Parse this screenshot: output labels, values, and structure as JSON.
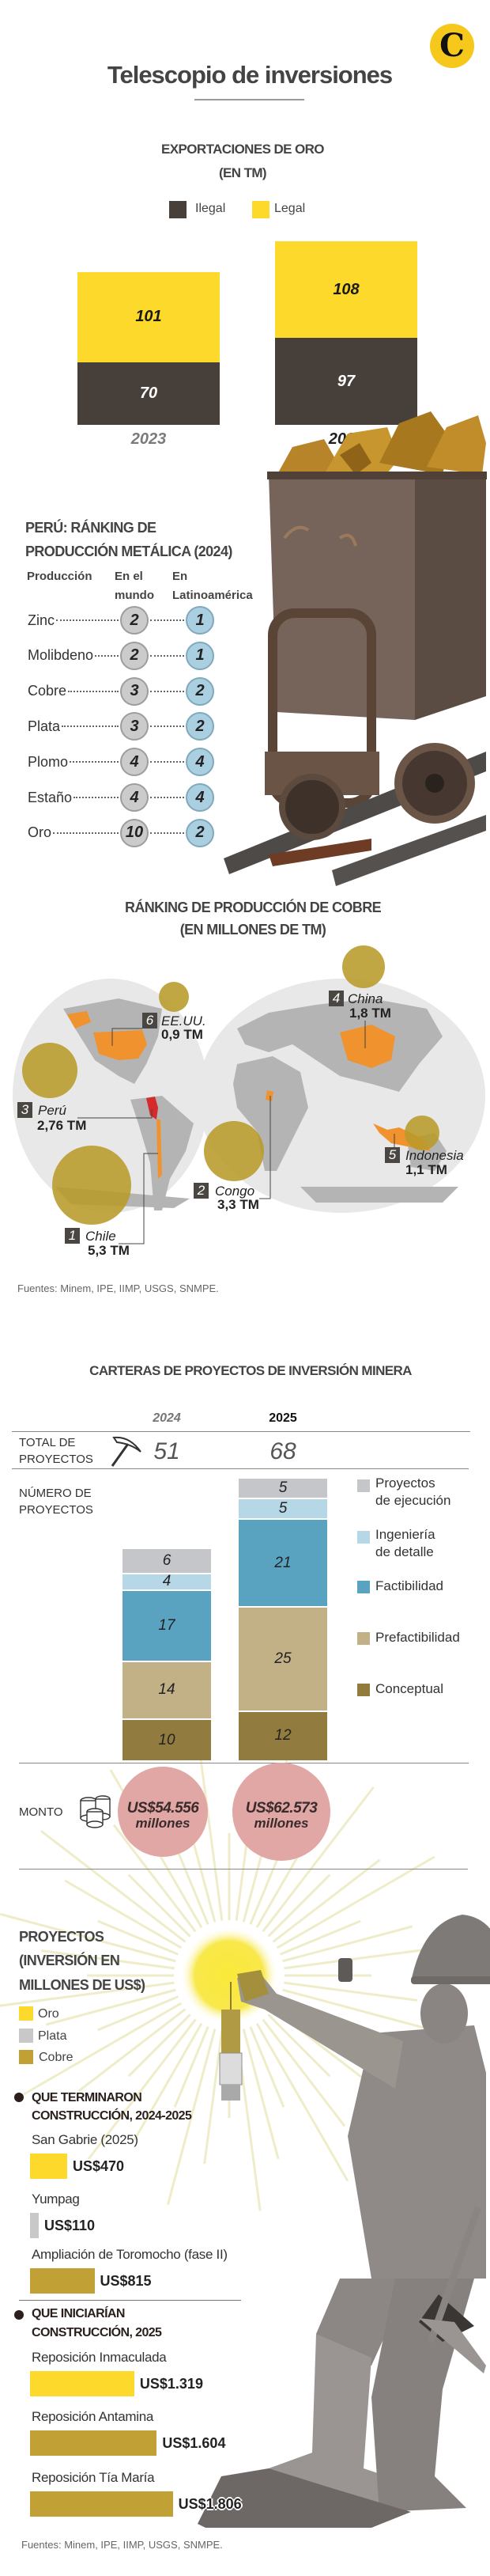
{
  "header": {
    "title": "Telescopio de inversiones",
    "logo_letter": "C"
  },
  "colors": {
    "ilegal": "#47403a",
    "legal": "#fcd92b",
    "oro": "#fcd92b",
    "plata": "#c8c8c8",
    "cobre": "#c1a035",
    "bubble": "#b89a2a",
    "country": "#f0922e",
    "peru": "#d62b2b"
  },
  "chart_data": [
    {
      "type": "bar",
      "stacked": true,
      "title": "EXPORTACIONES DE ORO",
      "subtitle": "(EN TM)",
      "categories": [
        "2023",
        "2024"
      ],
      "series": [
        {
          "name": "Ilegal",
          "values": [
            70,
            97
          ],
          "color": "#47403a"
        },
        {
          "name": "Legal",
          "values": [
            101,
            108
          ],
          "color": "#fcd92b"
        }
      ],
      "legend": "top"
    },
    {
      "type": "table",
      "title_line1": "PERÚ: RÁNKING DE",
      "title_line2": "PRODUCCIÓN METÁLICA (2024)",
      "columns": [
        "Producción",
        "En el",
        "mundo",
        "En",
        "Latinoamérica"
      ],
      "rows": [
        {
          "metal": "Zinc",
          "world": 2,
          "latam": 1
        },
        {
          "metal": "Molibdeno",
          "world": 2,
          "latam": 1
        },
        {
          "metal": "Cobre",
          "world": 3,
          "latam": 2
        },
        {
          "metal": "Plata",
          "world": 3,
          "latam": 2
        },
        {
          "metal": "Plomo",
          "world": 4,
          "latam": 4
        },
        {
          "metal": "Estaño",
          "world": 4,
          "latam": 4
        },
        {
          "metal": "Oro",
          "world": 10,
          "latam": 2
        }
      ]
    },
    {
      "type": "bar",
      "stacked": true,
      "title": "CARTERAS DE PROYECTOS DE INVERSIÓN MINERA",
      "categories": [
        "2024",
        "2025"
      ],
      "totals_label_1": "TOTAL DE",
      "totals_label_2": "PROYECTOS",
      "totals": [
        "51",
        "68"
      ],
      "count_label_1": "NÚMERO DE",
      "count_label_2": "PROYECTOS",
      "series": [
        {
          "name": "Conceptual",
          "values": [
            10,
            12
          ],
          "color": "#927b3f"
        },
        {
          "name": "Prefactibilidad",
          "values": [
            14,
            25
          ],
          "color": "#c2b187"
        },
        {
          "name": "Factibilidad",
          "values": [
            17,
            21
          ],
          "color": "#5aa3c0"
        },
        {
          "name": "Ingeniería de detalle",
          "legend_1": "Ingeniería",
          "legend_2": "de detalle",
          "values": [
            4,
            5
          ],
          "color": "#b6d7e6"
        },
        {
          "name": "Proyectos de ejecución",
          "legend_1": "Proyectos",
          "legend_2": "de ejecución",
          "values": [
            6,
            5
          ],
          "color": "#c4c6ca"
        }
      ],
      "monto_label": "MONTO",
      "monto": [
        {
          "amount": "US$54.556",
          "unit": "millones"
        },
        {
          "amount": "US$62.573",
          "unit": "millones"
        }
      ]
    },
    {
      "type": "bar",
      "orientation": "horizontal",
      "title_1": "PROYECTOS",
      "title_2": "(INVERSIÓN EN",
      "title_3": "MILLONES DE US$)",
      "legend": [
        {
          "name": "Oro",
          "key": "oro"
        },
        {
          "name": "Plata",
          "key": "plata"
        },
        {
          "name": "Cobre",
          "key": "cobre"
        }
      ],
      "groups": [
        {
          "title_1": "QUE TERMINARON",
          "title_2": "CONSTRUCCIÓN, 2024-2025",
          "items": [
            {
              "name": "San Gabrie (2025)",
              "value": 470,
              "label": "US$470",
              "metal": "oro"
            },
            {
              "name": "Yumpag",
              "value": 110,
              "label": "US$110",
              "metal": "plata"
            },
            {
              "name": "Ampliación de Toromocho (fase II)",
              "value": 815,
              "label": "US$815",
              "metal": "cobre"
            }
          ]
        },
        {
          "title_1": "QUE INICIARÍAN",
          "title_2": "CONSTRUCCIÓN, 2025",
          "items": [
            {
              "name": "Reposición Inmaculada",
              "value": 1319,
              "label": "US$1.319",
              "metal": "oro"
            },
            {
              "name": "Reposición Antamina",
              "value": 1604,
              "label": "US$1.604",
              "metal": "cobre"
            },
            {
              "name": "Reposición Tía María",
              "value": 1806,
              "label": "US$1.806",
              "metal": "cobre"
            }
          ]
        }
      ]
    }
  ],
  "copper": {
    "title_1": "RÁNKING DE PRODUCCIÓN DE COBRE",
    "title_2": "(EN MILLONES DE TM)",
    "countries": [
      {
        "rank": "1",
        "name": "Chile",
        "value": "5,3 TM",
        "amount": 5.3
      },
      {
        "rank": "2",
        "name": "Congo",
        "value": "3,3 TM",
        "amount": 3.3
      },
      {
        "rank": "3",
        "name": "Perú",
        "value": "2,76 TM",
        "amount": 2.76
      },
      {
        "rank": "4",
        "name": "China",
        "value": "1,8 TM",
        "amount": 1.8
      },
      {
        "rank": "5",
        "name": "Indonesia",
        "value": "1,1 TM",
        "amount": 1.1
      },
      {
        "rank": "6",
        "name": "EE.UU.",
        "value": "0,9 TM",
        "amount": 0.9
      }
    ]
  },
  "sources": "Fuentes: Minem, IPE, IIMP, USGS, SNMPE."
}
